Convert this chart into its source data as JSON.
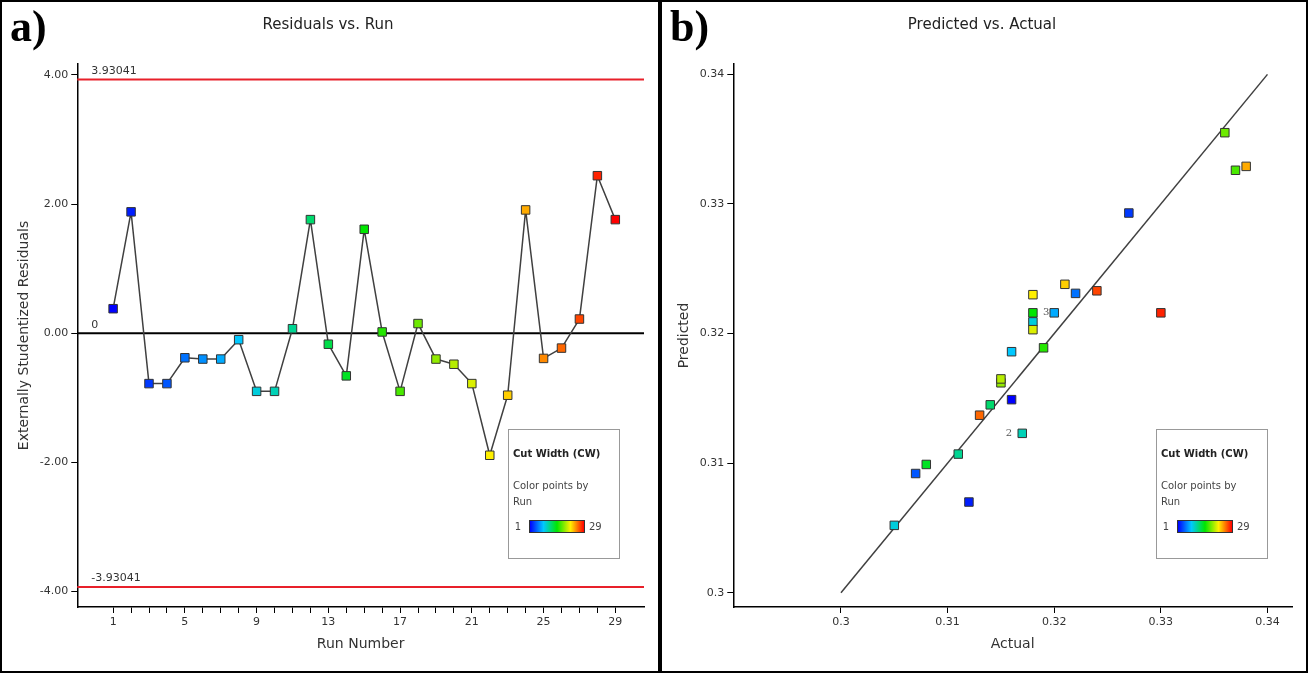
{
  "chart_data": [
    {
      "type": "line",
      "title": "Residuals vs. Run",
      "xlabel": "Run Number",
      "ylabel": "Externally Studentized Residuals",
      "legend_title": "Cut Width (CW)",
      "clabel": "Color points by Run",
      "marker": "square",
      "line_style": "solid",
      "x": [
        1,
        2,
        3,
        4,
        5,
        6,
        7,
        8,
        9,
        10,
        11,
        12,
        13,
        14,
        15,
        16,
        17,
        18,
        19,
        20,
        21,
        22,
        23,
        24,
        25,
        26,
        27,
        28,
        29
      ],
      "series": [
        {
          "color": "#404040",
          "values": [
            0.38,
            1.88,
            -0.78,
            -0.78,
            -0.38,
            -0.4,
            -0.4,
            -0.1,
            -0.9,
            -0.9,
            0.07,
            1.76,
            -0.17,
            -0.66,
            1.61,
            0.02,
            -0.9,
            0.15,
            -0.4,
            -0.48,
            -0.78,
            -1.89,
            -0.96,
            1.91,
            -0.39,
            -0.23,
            0.22,
            2.44,
            1.76
          ],
          "colors": [
            "#0000ff",
            "#001dff",
            "#0039ff",
            "#0056ff",
            "#0072ff",
            "#008fff",
            "#00abff",
            "#00c8ff",
            "#00ccdb",
            "#00d1b6",
            "#00d592",
            "#00d96d",
            "#00dd49",
            "#00e224",
            "#00e600",
            "#24e700",
            "#49e900",
            "#6dea00",
            "#92ec00",
            "#b6ed00",
            "#dbef00",
            "#fff000",
            "#ffce00",
            "#ffab00",
            "#ff8900",
            "#ff6700",
            "#ff4500",
            "#ff2200",
            "#ff0000"
          ]
        }
      ],
      "xlim": [
        -1,
        30.6
      ],
      "ylim": [
        -4.24,
        4.17
      ],
      "xticks": [
        1,
        {
          "value": 2,
          "label": null
        },
        {
          "value": 3,
          "label": null
        },
        {
          "value": 4,
          "label": null
        },
        5,
        {
          "value": 6,
          "label": null
        },
        {
          "value": 7,
          "label": null
        },
        {
          "value": 8,
          "label": null
        },
        9,
        {
          "value": 10,
          "label": null
        },
        {
          "value": 11,
          "label": null
        },
        {
          "value": 12,
          "label": null
        },
        13,
        {
          "value": 14,
          "label": null
        },
        {
          "value": 15,
          "label": null
        },
        {
          "value": 16,
          "label": null
        },
        17,
        {
          "value": 18,
          "label": null
        },
        {
          "value": 19,
          "label": null
        },
        {
          "value": 20,
          "label": null
        },
        21,
        {
          "value": 22,
          "label": null
        },
        {
          "value": 23,
          "label": null
        },
        {
          "value": 24,
          "label": null
        },
        25,
        {
          "value": 26,
          "label": null
        },
        {
          "value": 27,
          "label": null
        },
        {
          "value": 28,
          "label": null
        },
        29
      ],
      "yticks": [
        {
          "value": -4,
          "label": "-4.00"
        },
        {
          "value": -2,
          "label": "-2.00"
        },
        {
          "value": 0,
          "label": "0.00"
        },
        {
          "value": 2,
          "label": "2.00"
        },
        {
          "value": 4,
          "label": "4.00"
        }
      ],
      "ref_lines": [
        {
          "axis": "y",
          "value": 3.93041,
          "label": "3.93041",
          "color": "#e8202a"
        },
        {
          "axis": "y",
          "value": -3.93041,
          "label": "-3.93041",
          "color": "#e8202a"
        },
        {
          "axis": "y",
          "value": 0,
          "label": "0",
          "color": "#000000"
        }
      ],
      "annotations": [
        "a)",
        "1",
        "29"
      ]
    },
    {
      "type": "scatter",
      "title": "Predicted vs. Actual",
      "xlabel": "Actual",
      "ylabel": "Predicted",
      "legend_title": "Cut Width (CW)",
      "clabel": "Color points by Run",
      "marker": "square",
      "series": [
        {
          "color": "#404040",
          "x": [
            0.305,
            0.307,
            0.308,
            0.311,
            0.312,
            0.313,
            0.314,
            0.315,
            0.315,
            0.316,
            0.316,
            0.317,
            0.318,
            0.318,
            0.318,
            0.318,
            0.319,
            0.32,
            0.321,
            0.322,
            0.324,
            0.327,
            0.33,
            0.336,
            0.337,
            0.338
          ],
          "values": [
            0.3052,
            0.3092,
            0.3099,
            0.3107,
            0.307,
            0.3137,
            0.3145,
            0.3162,
            0.3165,
            0.3149,
            0.3186,
            0.3123,
            0.323,
            0.3216,
            0.3209,
            0.3203,
            0.3189,
            0.3216,
            0.3238,
            0.3231,
            0.3233,
            0.3293,
            0.3216,
            0.3355,
            0.3326,
            0.3329
          ],
          "colors": [
            "#00ccdb",
            "#0056ff",
            "#00e224",
            "#00d592",
            "#001dff",
            "#ff6700",
            "#00d96d",
            "#92ec00",
            "#b6ed00",
            "#0000ff",
            "#00c8ff",
            "#00d1b6",
            "#fff000",
            "#00e600",
            "#00ccdb",
            "#dbef00",
            "#24e700",
            "#00abff",
            "#ffce00",
            "#0072ff",
            "#ff4500",
            "#0039ff",
            "#ff2200",
            "#6dea00",
            "#49e900",
            "#ffab00"
          ]
        },
        {
          "type": "line",
          "marker": "none",
          "color": "#404040",
          "x": [
            0.3,
            0.34
          ],
          "values": [
            0.3,
            0.34
          ]
        }
      ],
      "xlim": [
        0.2899,
        0.3423
      ],
      "ylim": [
        0.2989,
        0.3408
      ],
      "xticks": [
        0.3,
        0.31,
        0.32,
        0.33,
        0.34
      ],
      "yticks": [
        0.3,
        0.31,
        0.32,
        0.33,
        0.34
      ],
      "annotations": [
        "b)",
        "1",
        "29",
        {
          "text": "2",
          "x": 0.317,
          "y": 0.3123
        },
        {
          "text": "3",
          "x": 0.318,
          "y": 0.3216
        }
      ]
    }
  ]
}
